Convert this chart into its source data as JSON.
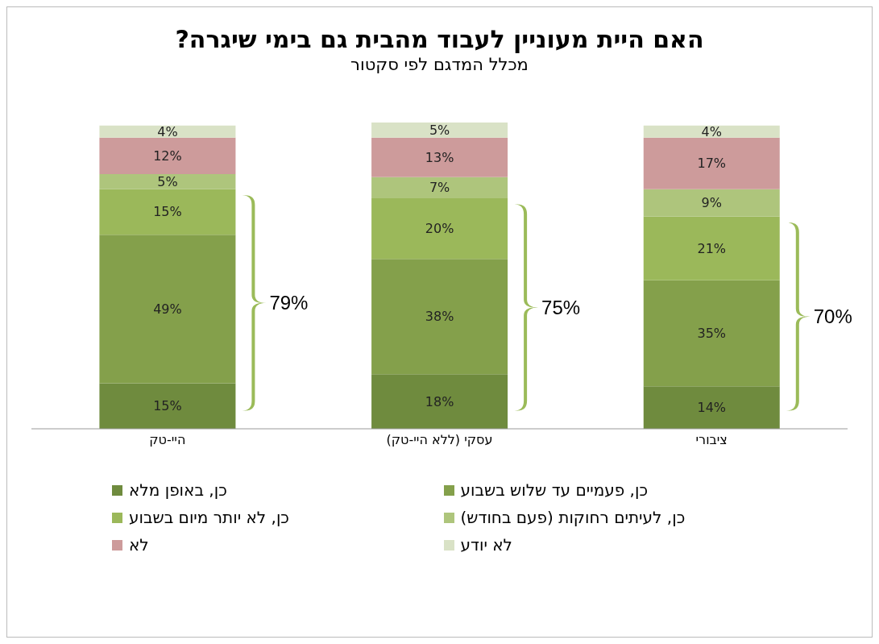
{
  "chart_data": {
    "type": "bar",
    "stacked": true,
    "title": "האם היית מעוניין לעבוד מהבית גם בימי שיגרה?",
    "subtitle": "מכלל המדגם לפי סקטור",
    "categories": [
      "היי-טק",
      "עסקי (ללא היי-טק)",
      "ציבורי"
    ],
    "legend": "bottom",
    "series": [
      {
        "name": "כן, באופן מלא",
        "color": "#6f8b3e",
        "values": [
          15,
          18,
          14
        ],
        "value_labels": [
          "15%",
          "18%",
          "14%"
        ]
      },
      {
        "name": "כן, פעמיים עד שלוש בשבוע",
        "color": "#84a04b",
        "values": [
          49,
          38,
          35
        ],
        "value_labels": [
          "49%",
          "38%",
          "35%"
        ]
      },
      {
        "name": "כן, לא יותר מיום בשבוע",
        "color": "#9bb85a",
        "values": [
          15,
          20,
          21
        ],
        "value_labels": [
          "15%",
          "20%",
          "21%"
        ]
      },
      {
        "name": "כן, לעיתים רחוקות (פעם בחודש)",
        "color": "#aec57c",
        "values": [
          5,
          7,
          9
        ],
        "value_labels": [
          "5%",
          "7%",
          "9%"
        ]
      },
      {
        "name": "לא",
        "color": "#cd9b9b",
        "values": [
          12,
          13,
          17
        ],
        "value_labels": [
          "12%",
          "13%",
          "17%"
        ]
      },
      {
        "name": "לא יודע",
        "color": "#d9e2c6",
        "values": [
          4,
          5,
          4
        ],
        "value_labels": [
          "4%",
          "5%",
          "4%"
        ]
      }
    ],
    "annotations": [
      "79%",
      "75%",
      "70%"
    ]
  }
}
